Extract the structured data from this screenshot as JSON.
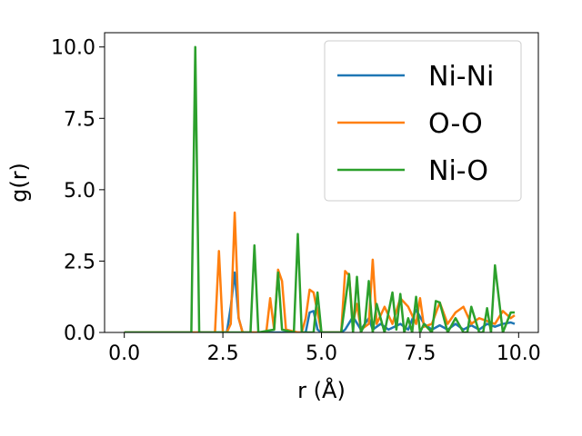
{
  "chart_data": {
    "type": "line",
    "xlabel": "r (Å)",
    "ylabel": "g(r)",
    "xlim": [
      -0.5,
      10.5
    ],
    "ylim": [
      0,
      10.5
    ],
    "xticks": [
      0.0,
      2.5,
      5.0,
      7.5,
      10.0
    ],
    "xtick_labels": [
      "0.0",
      "2.5",
      "5.0",
      "7.5",
      "10.0"
    ],
    "yticks": [
      0.0,
      2.5,
      5.0,
      7.5,
      10.0
    ],
    "ytick_labels": [
      "0.0",
      "2.5",
      "5.0",
      "7.5",
      "10.0"
    ],
    "grid": false,
    "legend_position": "top-right",
    "series": [
      {
        "name": "Ni-Ni",
        "color": "#1f77b4",
        "x": [
          0.0,
          1.0,
          2.0,
          2.4,
          2.6,
          2.7,
          2.8,
          2.9,
          3.0,
          4.0,
          4.6,
          4.7,
          4.8,
          4.9,
          5.0,
          5.5,
          5.6,
          5.8,
          6.0,
          6.2,
          6.3,
          6.5,
          6.7,
          7.0,
          7.2,
          7.4,
          7.6,
          7.8,
          8.0,
          8.2,
          8.4,
          8.6,
          8.8,
          9.0,
          9.2,
          9.4,
          9.6,
          9.8,
          9.9
        ],
        "y": [
          0.0,
          0.0,
          0.0,
          0.0,
          0.0,
          0.9,
          2.1,
          0.5,
          0.0,
          0.0,
          0.0,
          0.7,
          0.75,
          0.1,
          0.0,
          0.0,
          0.1,
          0.55,
          0.1,
          0.5,
          0.1,
          0.3,
          0.1,
          0.3,
          0.1,
          0.8,
          0.3,
          0.1,
          0.25,
          0.1,
          0.3,
          0.1,
          0.25,
          0.1,
          0.3,
          0.2,
          0.3,
          0.35,
          0.3
        ]
      },
      {
        "name": "O-O",
        "color": "#ff7f0e",
        "x": [
          0.0,
          1.0,
          2.0,
          2.3,
          2.4,
          2.5,
          2.6,
          2.7,
          2.8,
          2.9,
          3.0,
          3.6,
          3.7,
          3.8,
          3.9,
          4.0,
          4.1,
          4.4,
          4.5,
          4.6,
          4.7,
          4.8,
          5.0,
          5.5,
          5.6,
          5.7,
          5.8,
          5.9,
          6.0,
          6.1,
          6.2,
          6.3,
          6.4,
          6.6,
          6.8,
          7.0,
          7.2,
          7.4,
          7.5,
          7.6,
          7.8,
          8.0,
          8.2,
          8.4,
          8.6,
          8.8,
          9.0,
          9.2,
          9.4,
          9.6,
          9.8,
          9.9
        ],
        "y": [
          0.0,
          0.0,
          0.0,
          0.0,
          2.85,
          0.0,
          0.0,
          0.3,
          4.2,
          0.5,
          0.0,
          0.0,
          1.2,
          0.1,
          2.2,
          1.8,
          0.1,
          0.0,
          0.0,
          0.5,
          1.5,
          1.4,
          0.0,
          0.0,
          2.15,
          2.0,
          0.3,
          1.0,
          0.1,
          0.2,
          0.3,
          2.55,
          0.3,
          0.9,
          0.3,
          1.2,
          0.9,
          0.3,
          1.2,
          0.2,
          0.3,
          1.05,
          0.3,
          0.7,
          0.9,
          0.3,
          0.5,
          0.4,
          0.3,
          0.75,
          0.5,
          0.6
        ]
      },
      {
        "name": "Ni-O",
        "color": "#2ca02c",
        "x": [
          0.0,
          1.0,
          1.7,
          1.8,
          1.9,
          2.0,
          3.2,
          3.3,
          3.4,
          3.8,
          3.9,
          4.0,
          4.3,
          4.4,
          4.5,
          4.8,
          4.9,
          5.0,
          5.5,
          5.7,
          5.8,
          5.9,
          6.0,
          6.1,
          6.2,
          6.3,
          6.4,
          6.6,
          6.8,
          6.9,
          7.0,
          7.1,
          7.2,
          7.3,
          7.4,
          7.5,
          7.6,
          7.8,
          7.9,
          8.0,
          8.2,
          8.4,
          8.6,
          8.7,
          8.8,
          9.0,
          9.1,
          9.2,
          9.3,
          9.4,
          9.6,
          9.8,
          9.9
        ],
        "y": [
          0.0,
          0.0,
          0.0,
          10.0,
          0.0,
          0.0,
          0.0,
          3.05,
          0.0,
          0.1,
          2.1,
          0.1,
          0.0,
          3.45,
          0.0,
          0.0,
          1.4,
          0.0,
          0.0,
          2.05,
          0.0,
          1.95,
          0.0,
          0.3,
          1.8,
          0.0,
          1.0,
          0.0,
          1.4,
          0.1,
          1.35,
          0.0,
          0.5,
          0.0,
          1.25,
          0.0,
          0.3,
          0.0,
          1.1,
          1.05,
          0.0,
          0.5,
          0.0,
          0.0,
          0.9,
          0.0,
          0.0,
          0.85,
          0.0,
          2.35,
          0.0,
          0.7,
          0.7
        ]
      }
    ]
  }
}
